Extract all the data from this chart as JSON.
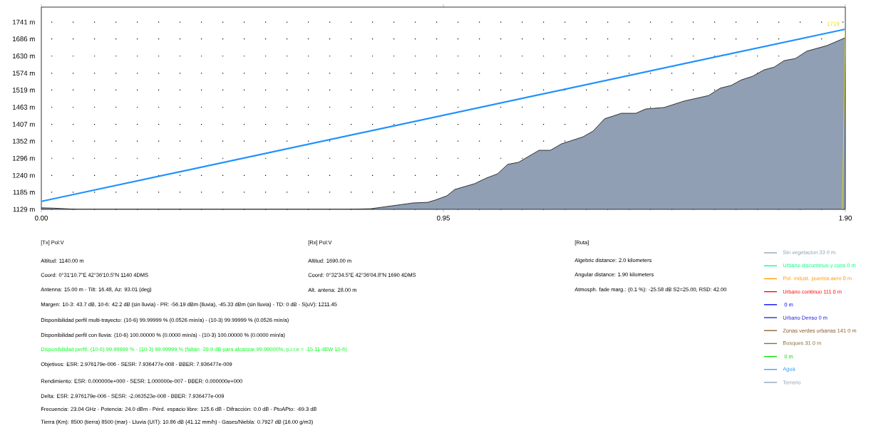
{
  "chart_data": {
    "type": "area",
    "xlim": [
      0,
      1.9
    ],
    "ylim": [
      1129,
      1790
    ],
    "xticks": [
      {
        "value": 0,
        "label": "0.00"
      },
      {
        "value": 0.95,
        "label": "0.95"
      },
      {
        "value": 1.9,
        "label": "1.90"
      }
    ],
    "yticks": [
      {
        "value": 1129,
        "label": "1129 m"
      },
      {
        "value": 1185,
        "label": "1185 m"
      },
      {
        "value": 1240,
        "label": "1240 m"
      },
      {
        "value": 1296,
        "label": "1296 m"
      },
      {
        "value": 1352,
        "label": "1352 m"
      },
      {
        "value": 1407,
        "label": "1407 m"
      },
      {
        "value": 1463,
        "label": "1463 m"
      },
      {
        "value": 1519,
        "label": "1519 m"
      },
      {
        "value": 1574,
        "label": "1574 m"
      },
      {
        "value": 1630,
        "label": "1630 m"
      },
      {
        "value": 1686,
        "label": "1686 m"
      },
      {
        "value": 1741,
        "label": "1741 m"
      }
    ],
    "grid": "y",
    "legend": "bottom right",
    "series": [
      {
        "name": "Sin vegetacion 33 0 m",
        "color": "#8fa0b4",
        "type": "line"
      },
      {
        "name": "Urbano discontinuo y cons 0 m",
        "color": "#00ff80",
        "type": "line"
      },
      {
        "name": "Pol. indust. puertos.aero 0 m",
        "color": "#ff9900",
        "type": "line"
      },
      {
        "name": "Urbano continuo 111 0 m",
        "color": "#ff0000",
        "type": "line"
      },
      {
        "name": " 0 m",
        "color": "#0000ff",
        "type": "line"
      },
      {
        "name": "Urbano Denso 0 m",
        "color": "#2020e0",
        "type": "line"
      },
      {
        "name": "Zonas verdes urbanas 141 0 m",
        "color": "#8b5a2b",
        "type": "line"
      },
      {
        "name": "Bosques 31 0 m",
        "color": "#8b6a3b",
        "type": "line"
      },
      {
        "name": " 0 m",
        "color": "#00e000",
        "type": "line"
      },
      {
        "name": "Agua",
        "color": "#3399ff",
        "type": "line"
      },
      {
        "name": "Terreno",
        "color": "#909fb3",
        "x": [
          0,
          0.029,
          0.088,
          0.635,
          0.718,
          0.778,
          0.879,
          0.913,
          0.93,
          0.958,
          0.977,
          1.024,
          1.051,
          1.078,
          1.102,
          1.128,
          1.176,
          1.203,
          1.229,
          1.28,
          1.304,
          1.331,
          1.371,
          1.405,
          1.428,
          1.472,
          1.519,
          1.577,
          1.604,
          1.63,
          1.654,
          1.681,
          1.708,
          1.732,
          1.755,
          1.782,
          1.809,
          1.856,
          1.9
        ],
        "values": [
          1134,
          1133,
          1129,
          1129,
          1129,
          1131,
          1150,
          1152,
          1159,
          1173,
          1194,
          1213,
          1231,
          1245,
          1276,
          1283,
          1322,
          1322,
          1343,
          1366,
          1385,
          1425,
          1443,
          1443,
          1457,
          1462,
          1483,
          1501,
          1525,
          1534,
          1552,
          1564,
          1585,
          1594,
          1615,
          1622,
          1646,
          1664,
          1690
        ]
      },
      {
        "color": "#1e90ff",
        "type": "line",
        "x": [
          0,
          1.9
        ],
        "values": [
          1155,
          1718
        ]
      }
    ],
    "annotations": [
      "[Tx] Pol:V",
      "Altitud: 1140.00 m",
      "Coord: 0°31'10.7\"E 42°36'10.5\"N 1140 4DMS",
      "Antenna: 15.00 m - Tilt: 16.48, Az: 93.01 (deg)",
      "[Rx] Pol:V",
      "Altitud: 1690.00 m",
      "Coord: 0°32'34.5\"E 42°36'04.8\"N 1690 4DMS",
      "Alt. antena: 28.00 m",
      "[Ruta]",
      "Algebric distance: 2.0 kilometers",
      "Angular distance: 1.90 kilometers",
      "Atmosph. fade marg.: (0.1 %): -25.58 dB S2=25.00, RSD: 42.00",
      "Margen: 10-3: 43.7 dB, 10-6: 42.2 dB (sin lluvia) - PR: -56.19 dBm (lluvia), -45.33 dBm (sin lluvia) - TD: 0 dB - S(uV): 1211.45",
      "Disponibilidad perfil multi-trayecto: (10-6) 99.99999 % (0.0526 mín/a) - (10-3) 99.99999 % (0.0526 mín/a)",
      "Disponibilidad perfil con lluvia: (10-6) 100.00000 % (0.0000 mín/a) - (10-3) 100.00000 % (0.0000 mín/a)",
      "Disponibilidad perfil: (10-6) 99.99999 % - (10-3) 99.99999 % (faltan -39.9 dB para alcanzar 99.99000%, p.i.r.e = -15.11 dBW 10-6)",
      "Objetivos: ESR: 2.976179e-006 - SESR: 7.936477e-008 - BBER: 7.936477e-009",
      "Rendimiento: ESR: 0.000000e+000 - SESR: 1.000000e-007 - BBER: 0.000000e+000",
      "Delta: ESR: 2.976179e-006 - SESR: -2.063523e-008 - BBER: 7.936477e-009",
      "Frecuencia: 23.04 GHz - Potencia: 24.0 dBm - Pérd. espacio libre: 125.6 dB - Difracción: 0.0 dB - PtoAPto: -69.3 dB",
      "Tierra (Km): 8500 (tierra) 8500 (mar) - Lluvia (UIT): 10.86 dB (41.12 mm/h) - Gases/Niebla: 0.7927 dB (16.00 g/m3)",
      {
        "text": "1719",
        "x": 1.9,
        "y": 1719
      }
    ]
  }
}
